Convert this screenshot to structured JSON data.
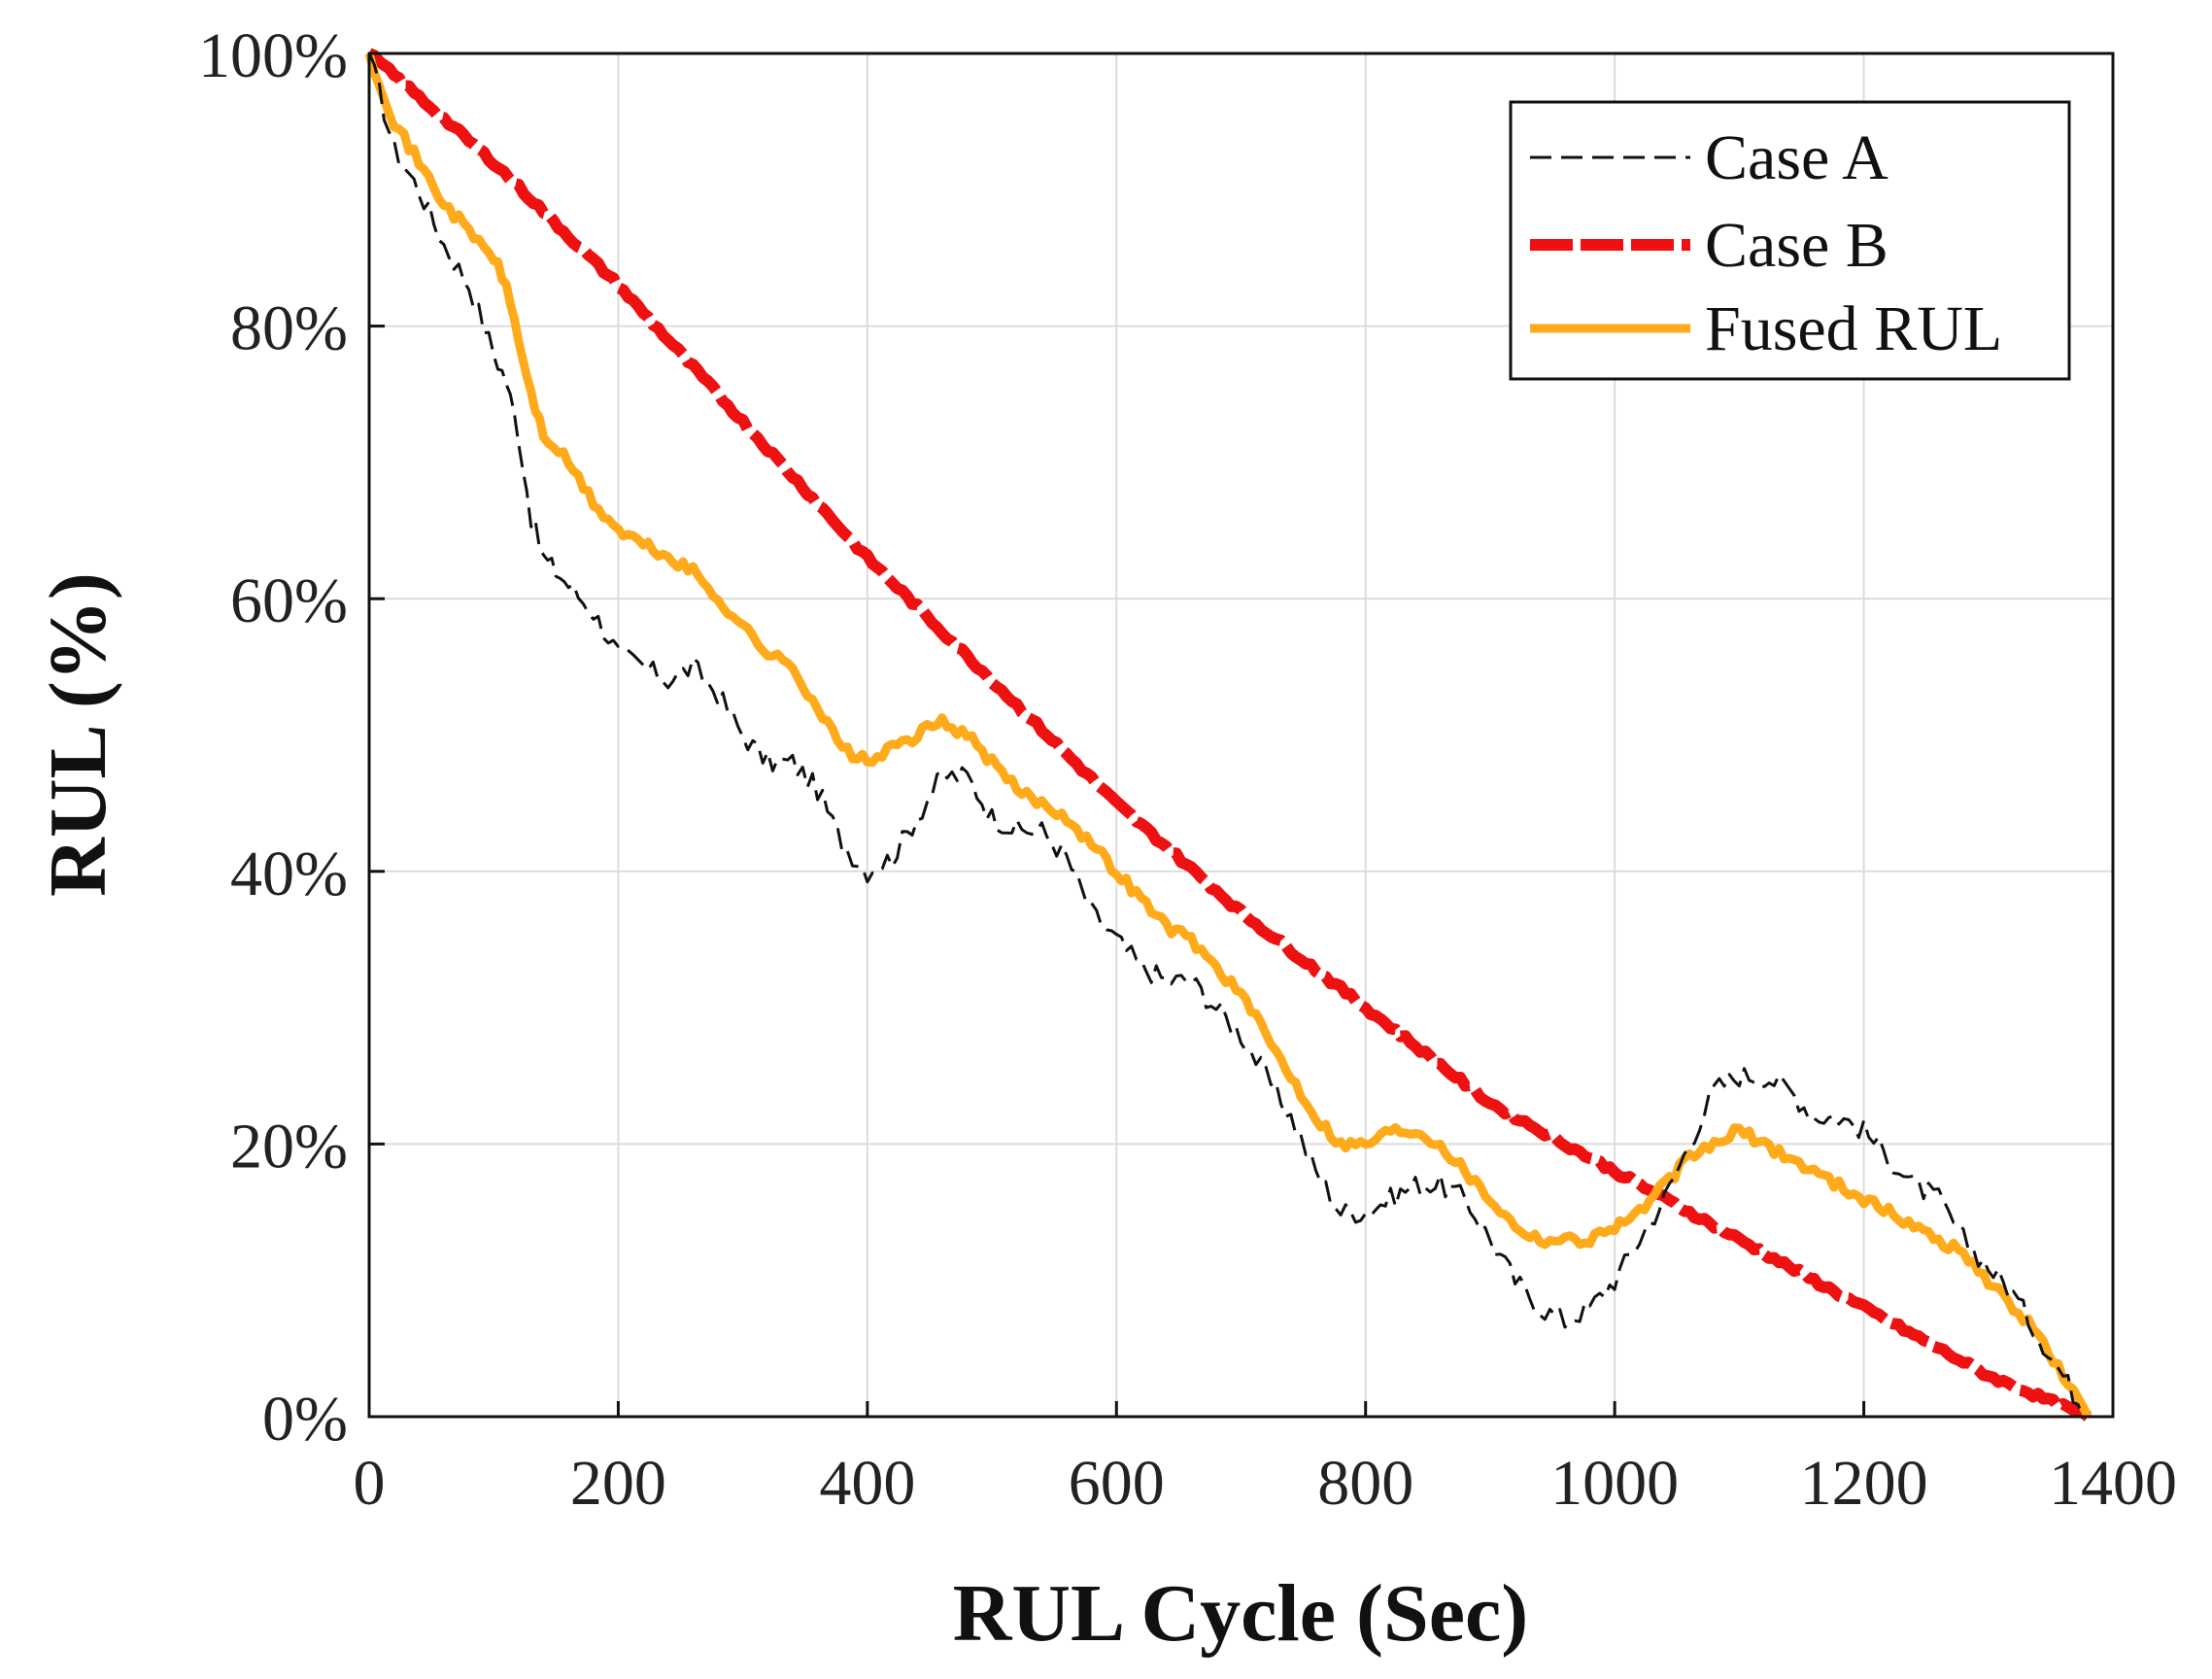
{
  "chart_data": {
    "type": "line",
    "title": "",
    "xlabel": "RUL Cycle (Sec)",
    "ylabel": "RUL (%)",
    "xlim": [
      0,
      1400
    ],
    "ylim": [
      0,
      100
    ],
    "xticks": [
      0,
      200,
      400,
      600,
      800,
      1000,
      1200,
      1400
    ],
    "yticks": [
      0,
      20,
      40,
      60,
      80,
      100
    ],
    "xtick_labels": [
      "0",
      "200",
      "400",
      "600",
      "800",
      "1000",
      "1200",
      "1400"
    ],
    "ytick_labels": [
      "0%",
      "20%",
      "40%",
      "60%",
      "80%",
      "100%"
    ],
    "grid": true,
    "legend_position": "top-right",
    "series": [
      {
        "name": "Case A",
        "color": "#111111",
        "style": "dashed-thin",
        "x": [
          0,
          20,
          40,
          60,
          80,
          100,
          110,
          120,
          130,
          140,
          150,
          160,
          180,
          200,
          220,
          240,
          260,
          280,
          300,
          320,
          340,
          360,
          380,
          400,
          420,
          440,
          460,
          480,
          500,
          520,
          540,
          560,
          580,
          600,
          620,
          640,
          660,
          680,
          700,
          720,
          740,
          760,
          780,
          800,
          820,
          840,
          860,
          880,
          900,
          920,
          940,
          960,
          980,
          1000,
          1020,
          1040,
          1060,
          1080,
          1100,
          1120,
          1140,
          1160,
          1180,
          1200,
          1220,
          1240,
          1260,
          1280,
          1300,
          1320,
          1340,
          1360,
          1380
        ],
        "y": [
          100,
          93,
          90,
          86,
          83,
          78,
          76,
          72,
          66,
          63,
          62,
          61,
          59,
          56,
          55,
          54,
          55,
          53,
          50,
          48,
          48,
          46,
          42,
          40,
          41,
          44,
          47,
          47,
          44,
          43,
          43,
          41,
          37,
          35,
          33,
          32,
          32,
          30,
          28,
          25,
          22,
          18,
          15,
          15,
          16,
          17,
          17,
          16,
          13,
          10,
          8,
          7,
          8,
          10,
          13,
          16,
          20,
          24,
          25,
          25,
          24,
          22,
          22,
          21,
          19,
          17,
          16,
          13,
          11,
          9,
          6,
          3,
          0
        ]
      },
      {
        "name": "Case B",
        "color": "#ee1111",
        "style": "dashed-thick",
        "x": [
          0,
          100,
          200,
          300,
          400,
          500,
          600,
          700,
          800,
          900,
          1000,
          1100,
          1200,
          1300,
          1380
        ],
        "y": [
          100,
          92,
          83,
          73,
          63,
          54,
          45,
          37,
          30,
          23,
          18,
          13,
          8,
          3,
          0
        ]
      },
      {
        "name": "Fused RUL",
        "color": "#ffaa1a",
        "style": "solid",
        "x": [
          0,
          20,
          40,
          60,
          80,
          100,
          110,
          120,
          130,
          140,
          160,
          180,
          200,
          220,
          240,
          260,
          280,
          300,
          320,
          340,
          360,
          380,
          400,
          420,
          440,
          460,
          480,
          500,
          520,
          540,
          560,
          580,
          600,
          620,
          640,
          660,
          680,
          700,
          720,
          740,
          760,
          780,
          800,
          820,
          840,
          860,
          880,
          900,
          920,
          940,
          960,
          980,
          1000,
          1020,
          1040,
          1060,
          1080,
          1100,
          1120,
          1140,
          1160,
          1180,
          1200,
          1220,
          1240,
          1260,
          1280,
          1300,
          1320,
          1340,
          1360,
          1380
        ],
        "y": [
          100,
          95,
          92,
          89,
          87,
          85,
          83,
          79,
          75,
          72,
          70,
          67,
          65,
          64,
          63,
          62,
          60,
          58,
          56,
          55,
          52,
          49,
          48,
          49,
          50,
          51,
          50,
          48,
          46,
          45,
          44,
          42,
          40,
          38,
          36,
          35,
          33,
          31,
          28,
          25,
          22,
          20,
          20,
          21,
          21,
          20,
          18,
          16,
          14,
          13,
          13,
          13,
          14,
          15,
          17,
          19,
          20,
          21,
          20,
          19,
          18,
          17,
          16,
          15,
          14,
          13,
          12,
          10,
          8,
          6,
          3,
          0
        ]
      }
    ]
  }
}
